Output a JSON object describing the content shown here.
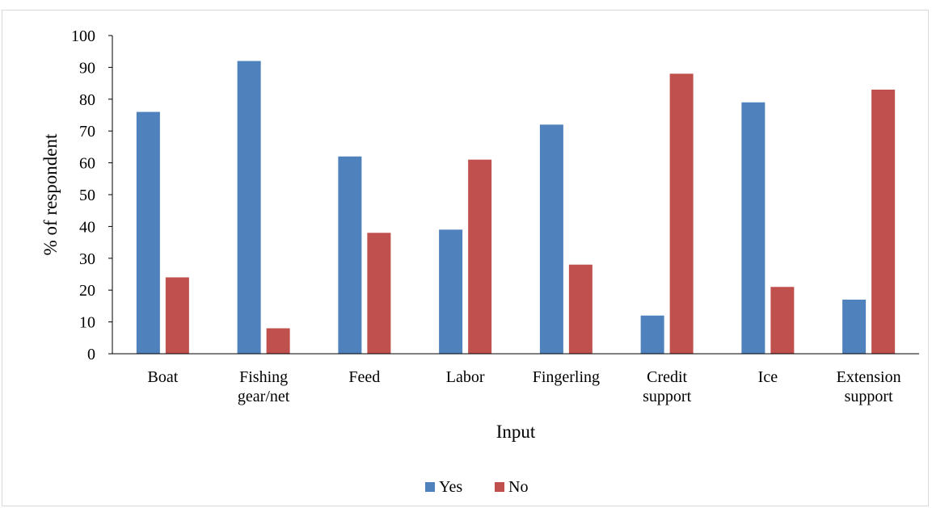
{
  "chart_data": {
    "type": "bar",
    "title": "",
    "xlabel": "Input",
    "ylabel": "% of respondent",
    "ylim": [
      0,
      100
    ],
    "yticks": [
      0,
      10,
      20,
      30,
      40,
      50,
      60,
      70,
      80,
      90,
      100
    ],
    "categories": [
      [
        "Boat"
      ],
      [
        "Fishing",
        "gear/net"
      ],
      [
        "Feed"
      ],
      [
        "Labor"
      ],
      [
        "Fingerling"
      ],
      [
        "Credit",
        "support"
      ],
      [
        "Ice"
      ],
      [
        "Extension",
        "support"
      ]
    ],
    "series": [
      {
        "name": "Yes",
        "color": "#4f81bd",
        "values": [
          76,
          92,
          62,
          39,
          72,
          12,
          79,
          17
        ]
      },
      {
        "name": "No",
        "color": "#c0504d",
        "values": [
          24,
          8,
          38,
          61,
          28,
          88,
          21,
          83
        ]
      }
    ],
    "grid": false,
    "legend": "bottom-center"
  }
}
